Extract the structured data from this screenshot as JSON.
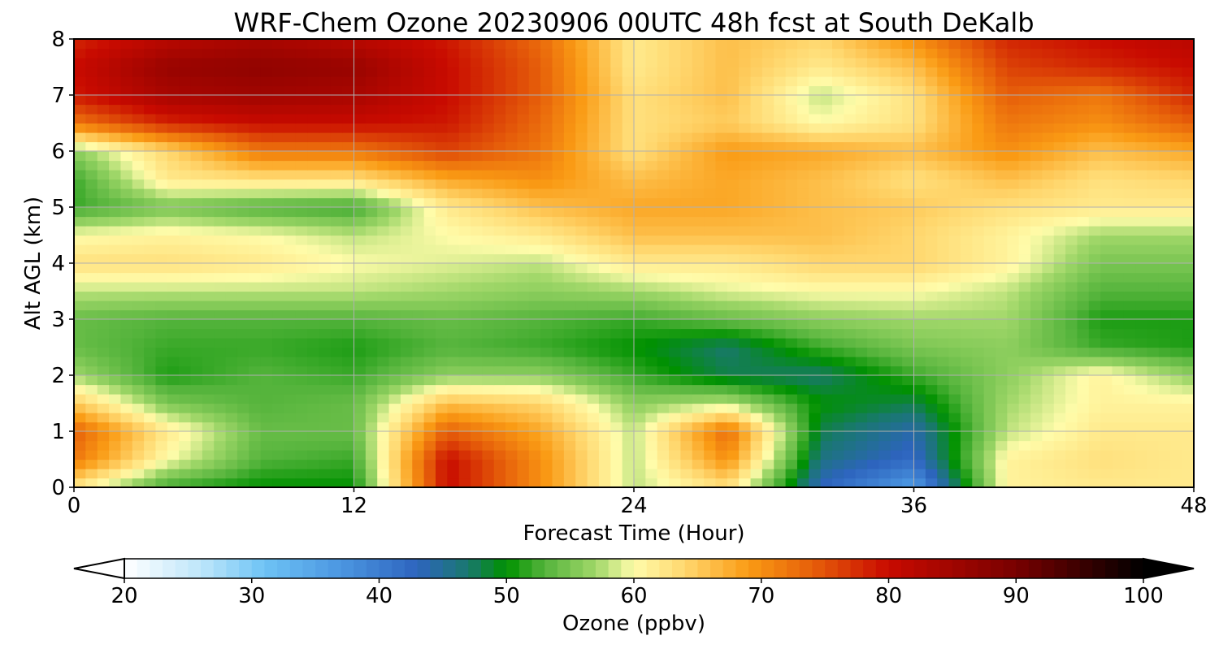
{
  "chart_data": {
    "type": "heatmap",
    "title": "WRF-Chem Ozone  20230906 00UTC 48h fcst at South DeKalb",
    "xlabel": "Forecast Time (Hour)",
    "ylabel": "Alt AGL (km)",
    "xlim": [
      0,
      48
    ],
    "ylim": [
      0,
      8
    ],
    "xticks": [
      "0",
      "12",
      "24",
      "36",
      "48"
    ],
    "yticks": [
      "0",
      "1",
      "2",
      "3",
      "4",
      "5",
      "6",
      "7",
      "8"
    ],
    "grid": true,
    "colorbar": {
      "label": "Ozone  (ppbv)",
      "range": [
        20,
        100
      ],
      "ticks": [
        "20",
        "30",
        "40",
        "50",
        "60",
        "70",
        "80",
        "90",
        "100"
      ],
      "extend": "both",
      "min_color": "#ffffff",
      "max_color": "#000000"
    },
    "x": [
      0,
      4,
      8,
      12,
      16,
      20,
      24,
      28,
      32,
      36,
      40,
      44,
      48
    ],
    "y": [
      0,
      0.5,
      1,
      1.5,
      2,
      2.5,
      3,
      3.5,
      4,
      4.5,
      5,
      5.5,
      6,
      6.5,
      7,
      7.5,
      8
    ],
    "z": [
      [
        62,
        52,
        50,
        50,
        80,
        70,
        58,
        63,
        43,
        36,
        61,
        62,
        62
      ],
      [
        72,
        60,
        53,
        52,
        80,
        70,
        58,
        70,
        46,
        42,
        61,
        63,
        62
      ],
      [
        74,
        62,
        54,
        54,
        74,
        68,
        58,
        73,
        48,
        44,
        58,
        62,
        62
      ],
      [
        65,
        55,
        53,
        54,
        66,
        64,
        56,
        58,
        50,
        48,
        57,
        61,
        61
      ],
      [
        57,
        51,
        53,
        52,
        56,
        56,
        52,
        48,
        47,
        52,
        56,
        61,
        56
      ],
      [
        54,
        52,
        52,
        51,
        53,
        52,
        50,
        47,
        52,
        55,
        56,
        52,
        51
      ],
      [
        54,
        53,
        53,
        53,
        54,
        53,
        52,
        54,
        56,
        57,
        57,
        51,
        51
      ],
      [
        58,
        58,
        58,
        58,
        57,
        56,
        57,
        59,
        60,
        60,
        58,
        53,
        53
      ],
      [
        63,
        63,
        62,
        60,
        59,
        58,
        62,
        62,
        64,
        64,
        61,
        55,
        55
      ],
      [
        60,
        61,
        60,
        58,
        60,
        62,
        66,
        66,
        66,
        64,
        61,
        57,
        57
      ],
      [
        52,
        55,
        53,
        52,
        62,
        66,
        68,
        68,
        66,
        65,
        63,
        62,
        62
      ],
      [
        52,
        62,
        63,
        63,
        68,
        70,
        66,
        68,
        66,
        63,
        66,
        63,
        64
      ],
      [
        56,
        64,
        72,
        72,
        76,
        72,
        63,
        69,
        68,
        66,
        70,
        66,
        68
      ],
      [
        72,
        78,
        80,
        80,
        79,
        73,
        63,
        65,
        60,
        63,
        72,
        70,
        74
      ],
      [
        79,
        84,
        85,
        84,
        80,
        74,
        63,
        66,
        58,
        63,
        74,
        72,
        78
      ],
      [
        80,
        86,
        87,
        86,
        80,
        74,
        62,
        66,
        62,
        66,
        76,
        78,
        80
      ],
      [
        78,
        82,
        84,
        82,
        79,
        73,
        62,
        66,
        64,
        70,
        78,
        80,
        82
      ]
    ]
  }
}
